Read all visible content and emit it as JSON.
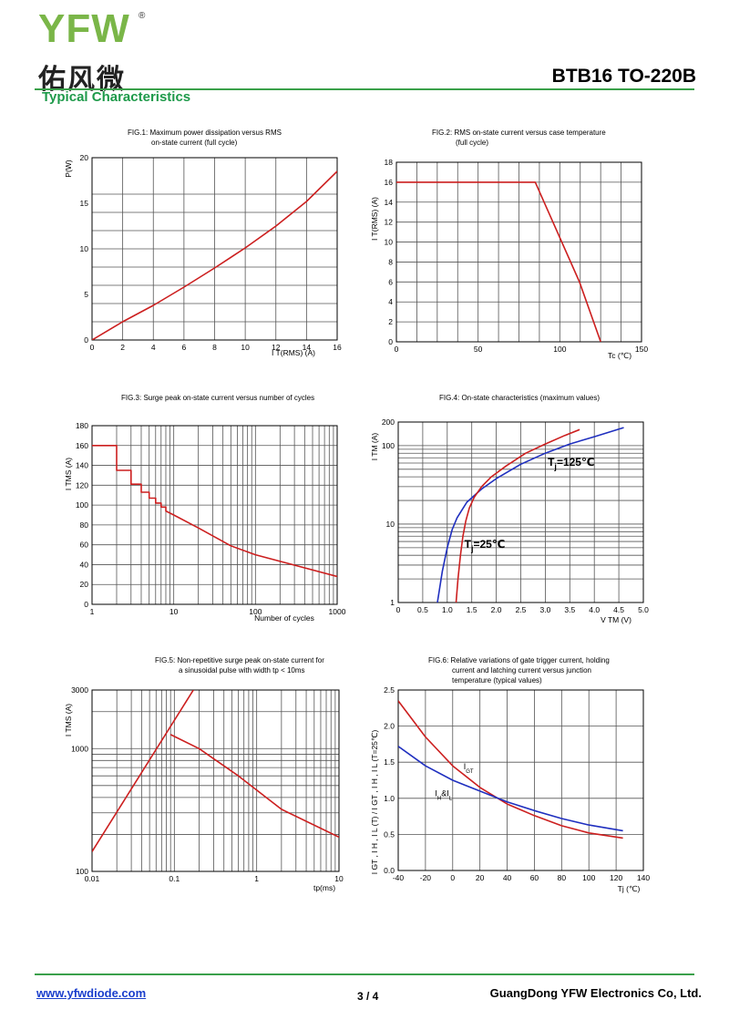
{
  "header": {
    "logo_letters": "YFW",
    "logo_registered": "®",
    "logo_chinese": "佑风微",
    "part_number": "BTB16 TO-220B",
    "section_title": "Typical Characteristics"
  },
  "footer": {
    "url": "www.yfwdiode.com",
    "page": "3 / 4",
    "company": "GuangDong YFW Electronics Co, Ltd."
  },
  "colors": {
    "grid": "#555555",
    "red_curve": "#cc1f1f",
    "blue_curve": "#1f2fbf",
    "brand_green": "#3aa04a"
  },
  "chart_data": [
    {
      "id": "fig1",
      "type": "line",
      "title_lines": [
        "FIG.1: Maximum power dissipation versus RMS",
        "on-state current (full cycle)"
      ],
      "ylabel": "P(W)",
      "xlabel": "I T(RMS) (A)",
      "xlim": [
        0,
        16
      ],
      "ylim": [
        0,
        20
      ],
      "xticks": [
        0,
        2,
        4,
        6,
        8,
        10,
        12,
        14,
        16
      ],
      "yticks": [
        0,
        5,
        10,
        15,
        20
      ],
      "series": [
        {
          "name": "P",
          "color": "red",
          "x": [
            0,
            2,
            4,
            6,
            8,
            10,
            12,
            14,
            16
          ],
          "y": [
            0,
            2.0,
            3.8,
            5.8,
            7.9,
            10.1,
            12.5,
            15.2,
            18.5
          ]
        }
      ]
    },
    {
      "id": "fig2",
      "type": "line",
      "title_lines": [
        "FIG.2: RMS on-state current versus case temperature",
        "(full cycle)"
      ],
      "ylabel": "I T(RMS) (A)",
      "xlabel": "Tc (℃)",
      "xlim": [
        0,
        150
      ],
      "ylim": [
        0,
        18
      ],
      "xticks": [
        0,
        50,
        100,
        150
      ],
      "yticks": [
        0,
        2,
        4,
        6,
        8,
        10,
        12,
        14,
        16,
        18
      ],
      "series": [
        {
          "name": "I",
          "color": "red",
          "x": [
            0,
            85,
            112,
            125
          ],
          "y": [
            16,
            16,
            6,
            0
          ]
        }
      ]
    },
    {
      "id": "fig3",
      "type": "line",
      "title_lines": [
        "FIG.3: Surge peak on-state current versus number of cycles"
      ],
      "ylabel": "I TMS (A)",
      "xlabel": "Number of cycles",
      "xlim": [
        1,
        1000
      ],
      "xscale": "log",
      "ylim": [
        0,
        180
      ],
      "xticks": [
        1,
        10,
        100,
        1000
      ],
      "yticks": [
        0,
        20,
        40,
        60,
        80,
        100,
        120,
        140,
        160,
        180
      ],
      "series": [
        {
          "name": "ITSM",
          "color": "red",
          "x": [
            1,
            2,
            2,
            3,
            3,
            4,
            4,
            5,
            5,
            6,
            6,
            7,
            7,
            8,
            8,
            10,
            20,
            50,
            100,
            1000
          ],
          "y": [
            160,
            160,
            135,
            135,
            121,
            121,
            113,
            113,
            107,
            107,
            102,
            102,
            98,
            98,
            94,
            90,
            77,
            59,
            50,
            28
          ]
        }
      ]
    },
    {
      "id": "fig4",
      "type": "line",
      "title_lines": [
        "FIG.4: On-state characteristics (maximum values)"
      ],
      "ylabel": "I TM (A)",
      "xlabel": "V TM (V)",
      "xlim": [
        0,
        5
      ],
      "ylim": [
        1,
        200
      ],
      "yscale": "log",
      "xticks": [
        0,
        0.5,
        1.0,
        1.5,
        2.0,
        2.5,
        3.0,
        3.5,
        4.0,
        4.5,
        5.0
      ],
      "xtick_labels": [
        "0",
        "0.5",
        "1.0",
        "1.5",
        "2.0",
        "2.5",
        "3.0",
        "3.5",
        "4.0",
        "4.5",
        "5.0"
      ],
      "yticks": [
        1,
        10,
        100,
        200
      ],
      "series": [
        {
          "name": "Tj=125℃",
          "color": "blue",
          "x": [
            0.8,
            0.9,
            1.0,
            1.1,
            1.2,
            1.4,
            1.7,
            2.0,
            2.5,
            3.0,
            3.5,
            4.0,
            4.6
          ],
          "y": [
            1,
            2.5,
            5,
            8.5,
            12,
            19,
            28,
            38,
            58,
            80,
            105,
            130,
            170
          ]
        },
        {
          "name": "Tj=25℃",
          "color": "red",
          "x": [
            1.18,
            1.22,
            1.27,
            1.32,
            1.38,
            1.45,
            1.55,
            1.7,
            1.9,
            2.2,
            2.6,
            3.0,
            3.4,
            3.7
          ],
          "y": [
            1,
            2,
            4,
            7,
            11,
            16,
            22,
            30,
            40,
            55,
            80,
            105,
            135,
            160
          ]
        }
      ],
      "annotations": [
        {
          "text_main": "T",
          "text_sub": "j",
          "text_tail": "=125℃",
          "at": [
            3.05,
            55
          ]
        },
        {
          "text_main": "T",
          "text_sub": "j",
          "text_tail": "=25℃",
          "at": [
            1.35,
            5
          ]
        }
      ]
    },
    {
      "id": "fig5",
      "type": "line",
      "title_lines": [
        "FIG.5: Non-repetitive surge peak on-state current for",
        "a sinusoidal pulse with width tp < 10ms"
      ],
      "ylabel": "I TMS (A)",
      "xlabel": "tp(ms)",
      "xlim": [
        0.01,
        10
      ],
      "xscale": "log",
      "ylim": [
        100,
        3000
      ],
      "yscale": "log",
      "xticks": [
        0.01,
        0.1,
        1,
        10
      ],
      "xtick_labels": [
        "0.01",
        "0.1",
        "1",
        "10"
      ],
      "yticks": [
        100,
        1000,
        3000
      ],
      "series": [
        {
          "name": "dI/dt limit",
          "color": "red",
          "x": [
            0.01,
            0.17
          ],
          "y": [
            145,
            3000
          ]
        },
        {
          "name": "ITSM",
          "color": "red",
          "x": [
            0.09,
            0.2,
            0.6,
            2,
            10
          ],
          "y": [
            1300,
            1000,
            600,
            320,
            190
          ]
        }
      ]
    },
    {
      "id": "fig6",
      "type": "line",
      "title_lines": [
        "FIG.6: Relative variations of gate trigger current, holding",
        "current and latching current versus junction",
        "temperature (typical values)"
      ],
      "ylabel": "I GT , I H , I L (T) / I GT , I H , I L (T=25℃)",
      "xlabel": "Tj (℃)",
      "xlim": [
        -40,
        140
      ],
      "ylim": [
        0,
        2.5
      ],
      "xticks": [
        -40,
        -20,
        0,
        20,
        40,
        60,
        80,
        100,
        120,
        140
      ],
      "yticks": [
        0.0,
        0.5,
        1.0,
        1.5,
        2.0,
        2.5
      ],
      "ytick_labels": [
        "0.0",
        "0.5",
        "1.0",
        "1.5",
        "2.0",
        "2.5"
      ],
      "series": [
        {
          "name": "IGT",
          "color": "red",
          "x": [
            -40,
            -20,
            0,
            20,
            40,
            60,
            80,
            100,
            125
          ],
          "y": [
            2.35,
            1.85,
            1.45,
            1.15,
            0.92,
            0.76,
            0.62,
            0.52,
            0.45
          ]
        },
        {
          "name": "IH&IL",
          "color": "blue",
          "x": [
            -40,
            -20,
            0,
            20,
            40,
            60,
            80,
            100,
            125
          ],
          "y": [
            1.72,
            1.45,
            1.25,
            1.1,
            0.95,
            0.83,
            0.72,
            0.63,
            0.55
          ]
        }
      ],
      "annotations": [
        {
          "text_main": "I",
          "text_sub": "GT",
          "text_tail": "",
          "at": [
            8,
            1.4
          ]
        },
        {
          "text_main": "I",
          "text_sub": "H",
          "text_tail": "&I",
          "text_sub2": "L",
          "at": [
            -13,
            1.03
          ]
        }
      ]
    }
  ]
}
